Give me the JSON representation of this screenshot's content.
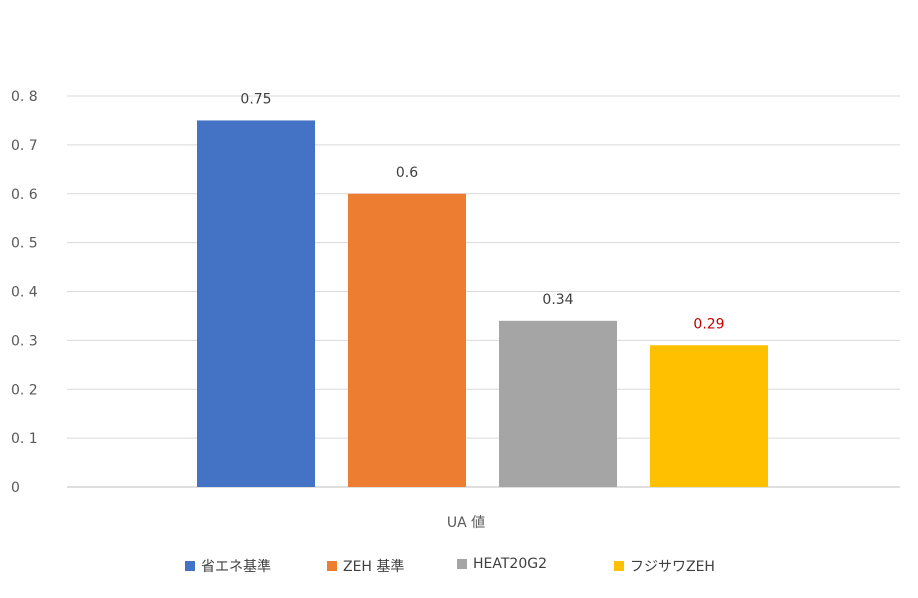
{
  "chart_data": {
    "type": "bar",
    "categories": [
      "UA 値"
    ],
    "ylim": [
      0,
      0.8
    ],
    "grid": true,
    "legend_position": "bottom",
    "y_tick_labels": [
      "0",
      "0. 1",
      "0. 2",
      "0. 3",
      "0. 4",
      "0. 5",
      "0. 6",
      "0. 7",
      "0. 8"
    ],
    "series": [
      {
        "name": "省エネ基準",
        "values": [
          0.75
        ],
        "label": "0.75",
        "color": "#4472C4",
        "label_color": "#404040"
      },
      {
        "name": "ZEH  基準",
        "values": [
          0.6
        ],
        "label": "0.6",
        "color": "#ED7D31",
        "label_color": "#404040"
      },
      {
        "name": "HEAT20G2",
        "values": [
          0.34
        ],
        "label": "0.34",
        "color": "#A5A5A5",
        "label_color": "#404040"
      },
      {
        "name": "フジサワZEH",
        "values": [
          0.29
        ],
        "label": "0.29",
        "color": "#FFC000",
        "label_color": "#C00000"
      }
    ]
  }
}
